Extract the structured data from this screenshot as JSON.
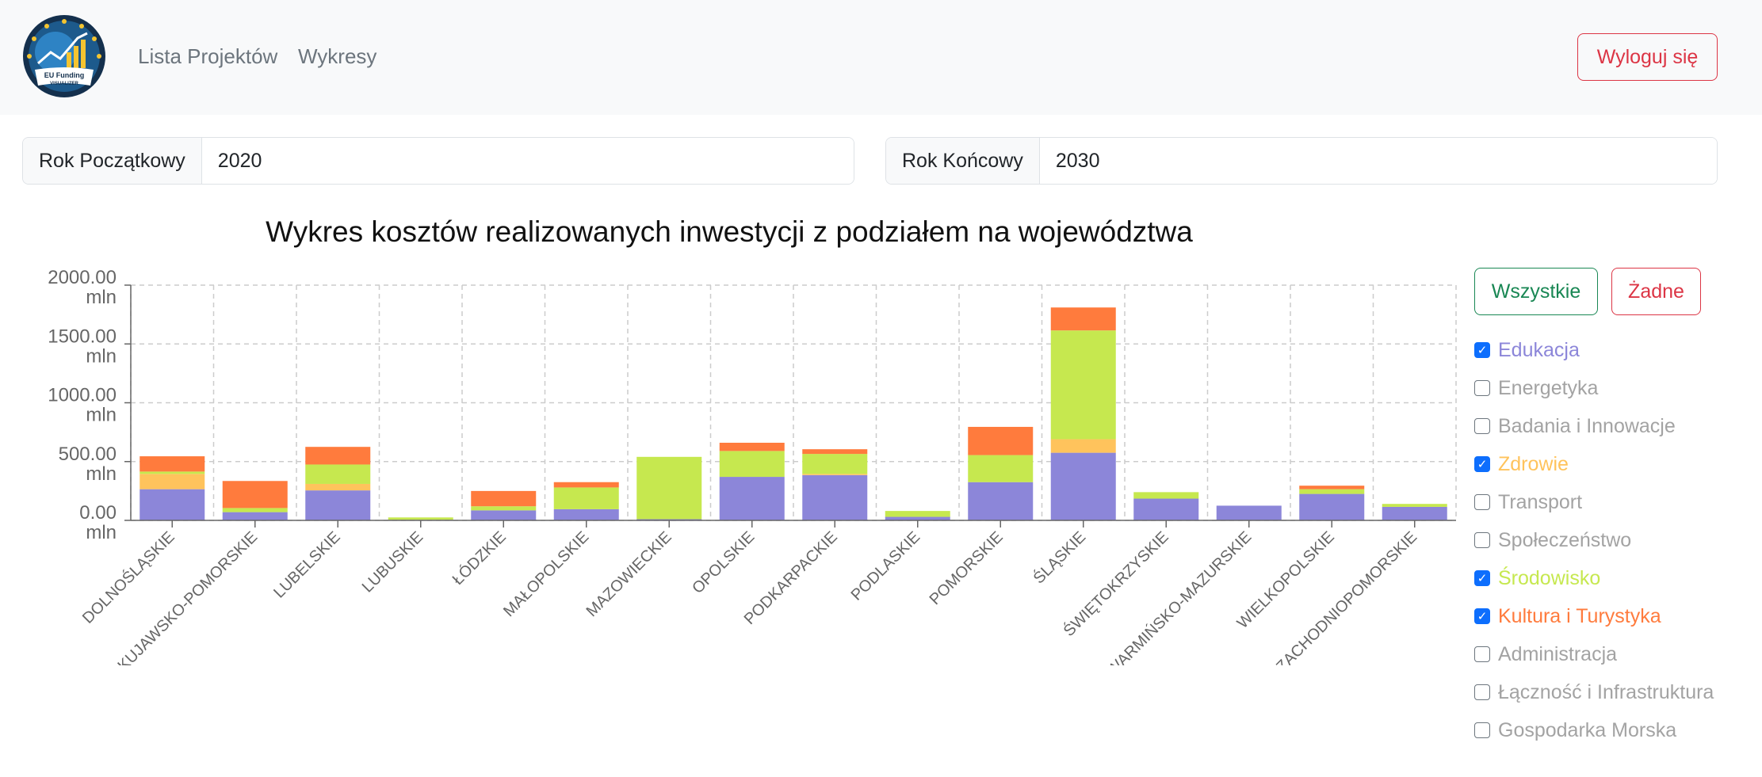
{
  "nav": {
    "links": [
      "Lista Projektów",
      "Wykresy"
    ],
    "logout_label": "Wyloguj się",
    "logo_text_1": "EU Funding",
    "logo_text_2": "VISUALIZER"
  },
  "filters": {
    "start_label": "Rok Początkowy",
    "start_value": "2020",
    "end_label": "Rok Końcowy",
    "end_value": "2030"
  },
  "controls": {
    "all_label": "Wszystkie",
    "none_label": "Żadne"
  },
  "categories": [
    {
      "label": "Edukacja",
      "checked": true,
      "color": "#8c86d9"
    },
    {
      "label": "Energetyka",
      "checked": false,
      "color": "#a3a3a3"
    },
    {
      "label": "Badania i Innowacje",
      "checked": false,
      "color": "#a3a3a3"
    },
    {
      "label": "Zdrowie",
      "checked": true,
      "color": "#ffc35c"
    },
    {
      "label": "Transport",
      "checked": false,
      "color": "#a3a3a3"
    },
    {
      "label": "Społeczeństwo",
      "checked": false,
      "color": "#a3a3a3"
    },
    {
      "label": "Środowisko",
      "checked": true,
      "color": "#c6e84f"
    },
    {
      "label": "Kultura i Turystyka",
      "checked": true,
      "color": "#ff7b3d"
    },
    {
      "label": "Administracja",
      "checked": false,
      "color": "#a3a3a3"
    },
    {
      "label": "Łączność i Infrastruktura",
      "checked": false,
      "color": "#a3a3a3"
    },
    {
      "label": "Gospodarka Morska",
      "checked": false,
      "color": "#a3a3a3"
    }
  ],
  "chart_data": {
    "type": "bar",
    "stacked": true,
    "title": "Wykres kosztów realizowanych inwestycji z podziałem na województwa",
    "unit": "mln",
    "ylim": [
      0,
      2000
    ],
    "yticks": [
      0,
      500,
      1000,
      1500,
      2000
    ],
    "grid": true,
    "categories": [
      "DOLNOŚLĄSKIE",
      "KUJAWSKO-POMORSKIE",
      "LUBELSKIE",
      "LUBUSKIE",
      "ŁÓDZKIE",
      "MAŁOPOLSKIE",
      "MAZOWIECKIE",
      "OPOLSKIE",
      "PODKARPACKIE",
      "PODLASKIE",
      "POMORSKIE",
      "ŚLĄSKIE",
      "ŚWIĘTOKRZYSKIE",
      "WARMIŃSKO-MAZURSKIE",
      "WIELKOPOLSKIE",
      "ZACHODNIOPOMORSKIE"
    ],
    "series": [
      {
        "name": "Edukacja",
        "color": "#8c86d9",
        "values": [
          265,
          70,
          255,
          5,
          85,
          95,
          10,
          370,
          385,
          30,
          325,
          575,
          185,
          125,
          225,
          115
        ]
      },
      {
        "name": "Zdrowie",
        "color": "#ffc35c",
        "values": [
          130,
          0,
          55,
          0,
          0,
          0,
          0,
          0,
          10,
          0,
          0,
          115,
          0,
          0,
          0,
          0
        ]
      },
      {
        "name": "Środowisko",
        "color": "#c6e84f",
        "values": [
          20,
          35,
          165,
          20,
          35,
          185,
          530,
          220,
          170,
          50,
          230,
          925,
          55,
          0,
          40,
          25
        ]
      },
      {
        "name": "Kultura i Turystyka",
        "color": "#ff7b3d",
        "values": [
          130,
          230,
          150,
          0,
          130,
          45,
          0,
          70,
          40,
          0,
          240,
          195,
          0,
          0,
          30,
          0
        ]
      }
    ]
  }
}
